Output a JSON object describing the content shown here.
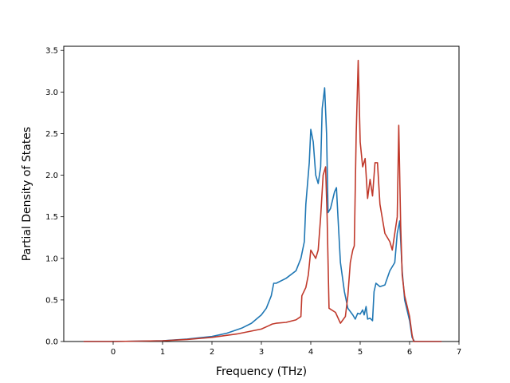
{
  "chart_data": {
    "type": "line",
    "title": "",
    "xlabel": "Frequency (THz)",
    "ylabel": "Partial Density of States",
    "xlim": [
      -1.0,
      7.0
    ],
    "ylim": [
      0.0,
      3.55
    ],
    "xticks": [
      0,
      1,
      2,
      3,
      4,
      5,
      6,
      7
    ],
    "yticks": [
      0.0,
      0.5,
      1.0,
      1.5,
      2.0,
      2.5,
      3.0,
      3.5
    ],
    "xtick_labels": [
      "0",
      "1",
      "2",
      "3",
      "4",
      "5",
      "6",
      "7"
    ],
    "ytick_labels": [
      "0.0",
      "0.5",
      "1.0",
      "1.5",
      "2.0",
      "2.5",
      "3.0",
      "3.5"
    ],
    "grid": false,
    "legend": "none",
    "series": [
      {
        "color": "#1f77b4",
        "points": [
          [
            -0.6,
            0.0
          ],
          [
            0.0,
            0.0
          ],
          [
            0.5,
            0.005
          ],
          [
            1.0,
            0.01
          ],
          [
            1.5,
            0.03
          ],
          [
            2.0,
            0.06
          ],
          [
            2.3,
            0.1
          ],
          [
            2.6,
            0.16
          ],
          [
            2.8,
            0.22
          ],
          [
            3.0,
            0.32
          ],
          [
            3.1,
            0.4
          ],
          [
            3.2,
            0.55
          ],
          [
            3.25,
            0.7
          ],
          [
            3.3,
            0.7
          ],
          [
            3.5,
            0.76
          ],
          [
            3.7,
            0.85
          ],
          [
            3.8,
            1.0
          ],
          [
            3.87,
            1.2
          ],
          [
            3.9,
            1.65
          ],
          [
            3.97,
            2.15
          ],
          [
            4.0,
            2.55
          ],
          [
            4.05,
            2.4
          ],
          [
            4.1,
            2.0
          ],
          [
            4.15,
            1.9
          ],
          [
            4.2,
            2.1
          ],
          [
            4.23,
            2.8
          ],
          [
            4.28,
            3.05
          ],
          [
            4.32,
            2.5
          ],
          [
            4.35,
            1.55
          ],
          [
            4.4,
            1.6
          ],
          [
            4.48,
            1.8
          ],
          [
            4.52,
            1.85
          ],
          [
            4.55,
            1.5
          ],
          [
            4.6,
            0.95
          ],
          [
            4.68,
            0.6
          ],
          [
            4.75,
            0.4
          ],
          [
            4.85,
            0.32
          ],
          [
            4.9,
            0.27
          ],
          [
            4.95,
            0.34
          ],
          [
            5.0,
            0.33
          ],
          [
            5.05,
            0.38
          ],
          [
            5.08,
            0.32
          ],
          [
            5.12,
            0.42
          ],
          [
            5.15,
            0.27
          ],
          [
            5.2,
            0.28
          ],
          [
            5.25,
            0.25
          ],
          [
            5.28,
            0.6
          ],
          [
            5.32,
            0.7
          ],
          [
            5.4,
            0.66
          ],
          [
            5.5,
            0.68
          ],
          [
            5.6,
            0.85
          ],
          [
            5.7,
            0.95
          ],
          [
            5.75,
            1.3
          ],
          [
            5.8,
            1.45
          ],
          [
            5.85,
            0.85
          ],
          [
            5.9,
            0.5
          ],
          [
            6.0,
            0.25
          ],
          [
            6.05,
            0.05
          ],
          [
            6.1,
            0.0
          ],
          [
            6.65,
            0.0
          ]
        ]
      },
      {
        "color": "#c0392b",
        "points": [
          [
            -0.6,
            0.0
          ],
          [
            0.0,
            0.0
          ],
          [
            0.5,
            0.005
          ],
          [
            1.0,
            0.01
          ],
          [
            1.5,
            0.025
          ],
          [
            2.0,
            0.05
          ],
          [
            2.5,
            0.09
          ],
          [
            3.0,
            0.15
          ],
          [
            3.15,
            0.19
          ],
          [
            3.22,
            0.21
          ],
          [
            3.3,
            0.22
          ],
          [
            3.5,
            0.23
          ],
          [
            3.7,
            0.26
          ],
          [
            3.8,
            0.3
          ],
          [
            3.82,
            0.55
          ],
          [
            3.9,
            0.65
          ],
          [
            3.95,
            0.8
          ],
          [
            4.0,
            1.1
          ],
          [
            4.05,
            1.05
          ],
          [
            4.1,
            1.0
          ],
          [
            4.15,
            1.1
          ],
          [
            4.2,
            1.5
          ],
          [
            4.25,
            2.0
          ],
          [
            4.3,
            2.1
          ],
          [
            4.33,
            1.5
          ],
          [
            4.37,
            0.4
          ],
          [
            4.5,
            0.35
          ],
          [
            4.6,
            0.22
          ],
          [
            4.7,
            0.3
          ],
          [
            4.75,
            0.55
          ],
          [
            4.8,
            0.95
          ],
          [
            4.85,
            1.1
          ],
          [
            4.88,
            1.15
          ],
          [
            4.92,
            2.5
          ],
          [
            4.96,
            3.38
          ],
          [
            5.0,
            2.4
          ],
          [
            5.05,
            2.1
          ],
          [
            5.1,
            2.2
          ],
          [
            5.15,
            1.72
          ],
          [
            5.2,
            1.95
          ],
          [
            5.25,
            1.75
          ],
          [
            5.3,
            2.15
          ],
          [
            5.35,
            2.15
          ],
          [
            5.4,
            1.65
          ],
          [
            5.5,
            1.3
          ],
          [
            5.6,
            1.2
          ],
          [
            5.65,
            1.1
          ],
          [
            5.7,
            1.3
          ],
          [
            5.75,
            1.5
          ],
          [
            5.78,
            2.6
          ],
          [
            5.82,
            1.4
          ],
          [
            5.85,
            0.8
          ],
          [
            5.9,
            0.55
          ],
          [
            6.0,
            0.3
          ],
          [
            6.05,
            0.08
          ],
          [
            6.08,
            0.0
          ],
          [
            6.65,
            0.0
          ]
        ]
      }
    ]
  }
}
